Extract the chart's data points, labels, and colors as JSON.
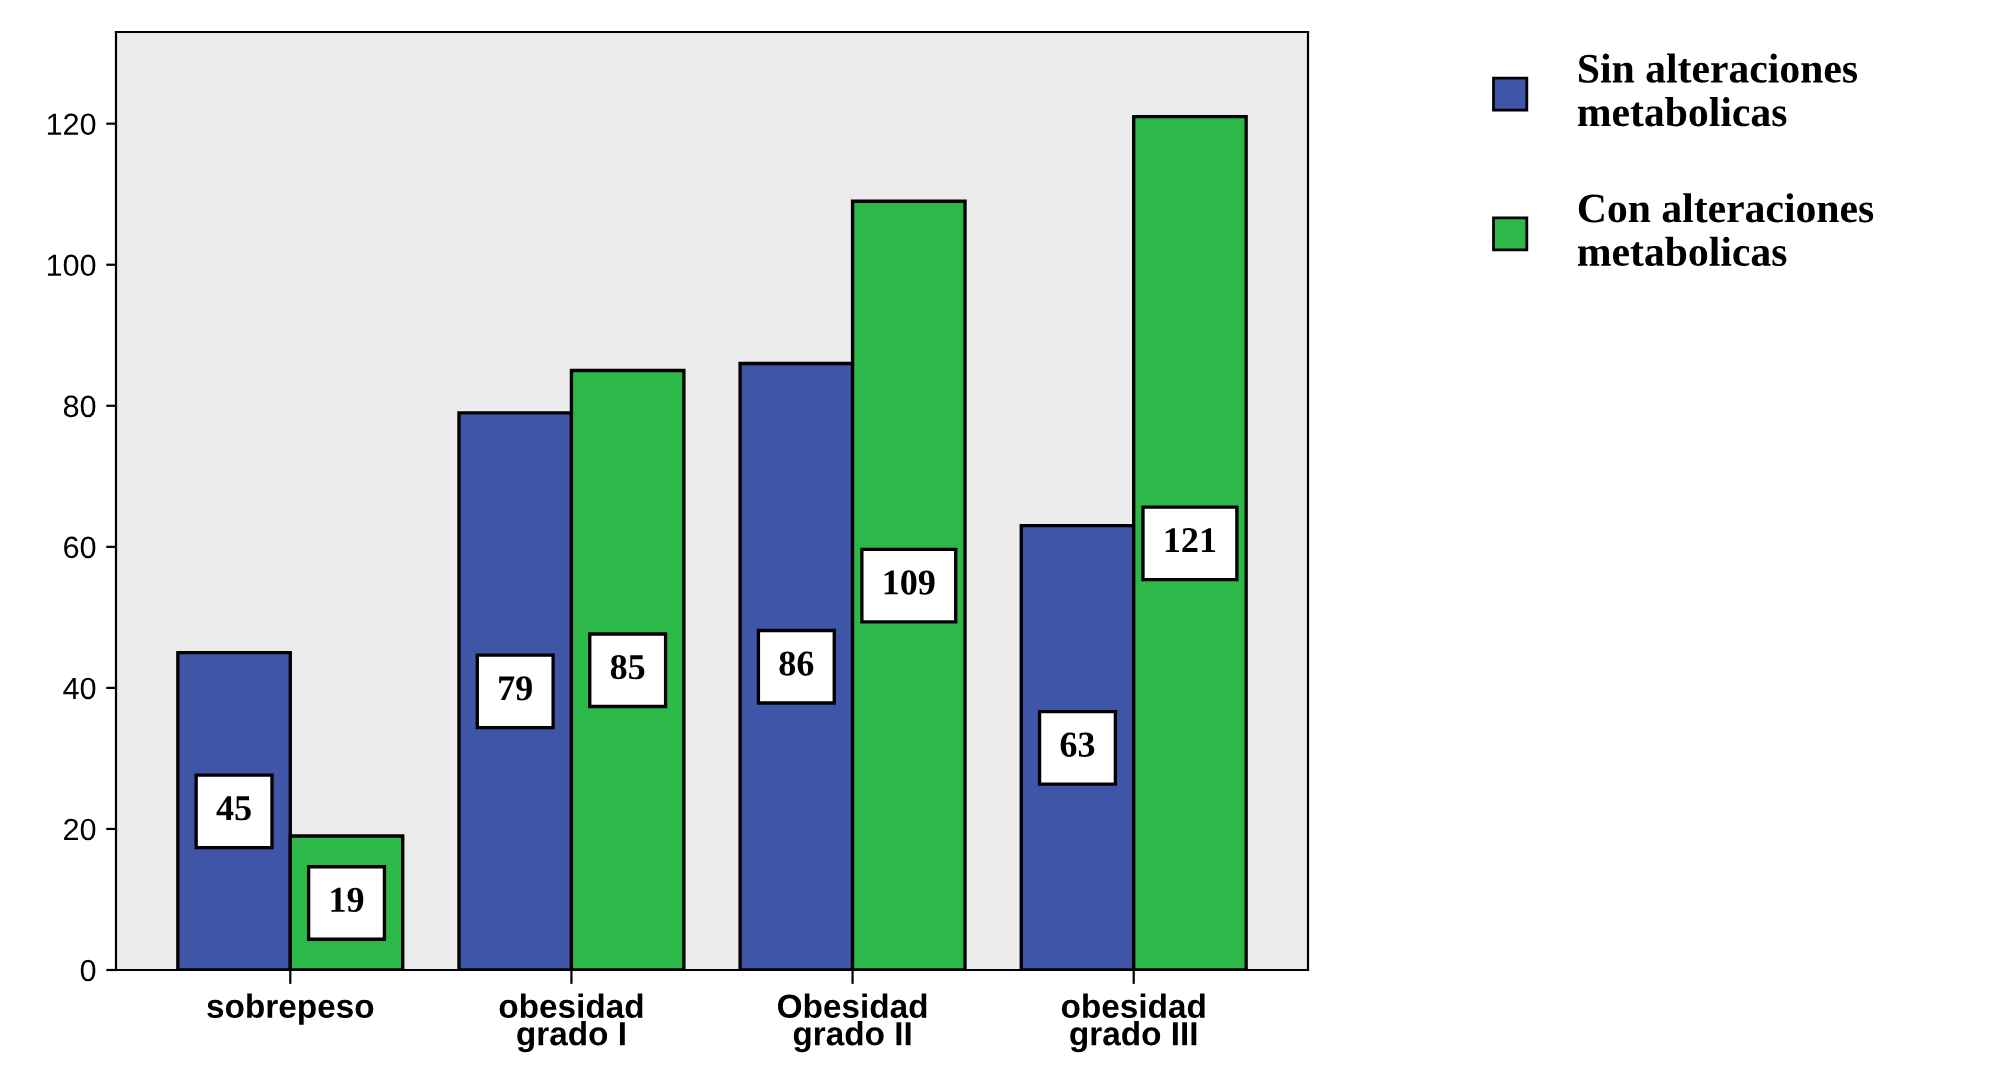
{
  "chart_data": {
    "type": "bar",
    "categories": [
      "sobrepeso",
      "obesidad\ngrado I",
      "Obesidad\ngrado II",
      "obesidad\ngrado III"
    ],
    "series": [
      {
        "name": "Sin alteraciones metabolicas",
        "color": "#3f56a8",
        "values": [
          45,
          79,
          86,
          63
        ]
      },
      {
        "name": "Con alteraciones metabolicas",
        "color": "#2db84a",
        "values": [
          19,
          85,
          109,
          121
        ]
      }
    ],
    "ylim": [
      0,
      133
    ],
    "yticks": [
      0,
      20,
      40,
      60,
      80,
      100,
      120
    ],
    "grid": false,
    "legend": "right",
    "data_labels": true
  }
}
